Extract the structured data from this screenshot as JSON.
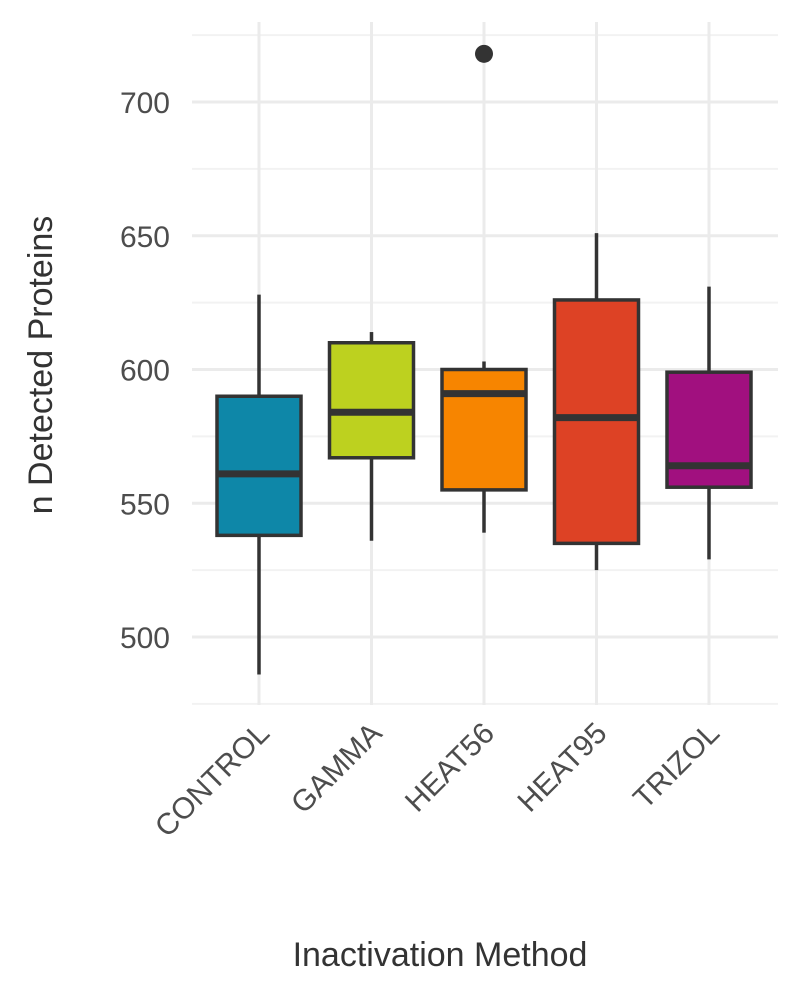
{
  "chart_data": {
    "type": "boxplot",
    "xlabel": "Inactivation Method",
    "ylabel": "n Detected Proteins",
    "ylim": [
      475,
      730
    ],
    "yticks": [
      500,
      550,
      600,
      650,
      700
    ],
    "grid": true,
    "legend": "none",
    "categories": [
      "CONTROL",
      "GAMMA",
      "HEAT56",
      "HEAT95",
      "TRIZOL"
    ],
    "boxes": [
      {
        "category": "CONTROL",
        "min": 486,
        "q1": 538,
        "median": 561,
        "q3": 590,
        "max": 628,
        "outliers": [],
        "color": "#0e87a8"
      },
      {
        "category": "GAMMA",
        "min": 536,
        "q1": 567,
        "median": 584,
        "q3": 610,
        "max": 614,
        "outliers": [],
        "color": "#bdd11f"
      },
      {
        "category": "HEAT56",
        "min": 539,
        "q1": 555,
        "median": 591,
        "q3": 600,
        "max": 603,
        "outliers": [
          718
        ],
        "color": "#f78500"
      },
      {
        "category": "HEAT95",
        "min": 525,
        "q1": 535,
        "median": 582,
        "q3": 626,
        "max": 651,
        "outliers": [],
        "color": "#dd4225"
      },
      {
        "category": "TRIZOL",
        "min": 529,
        "q1": 556,
        "median": 564,
        "q3": 599,
        "max": 631,
        "outliers": [],
        "color": "#a1107f"
      }
    ]
  }
}
